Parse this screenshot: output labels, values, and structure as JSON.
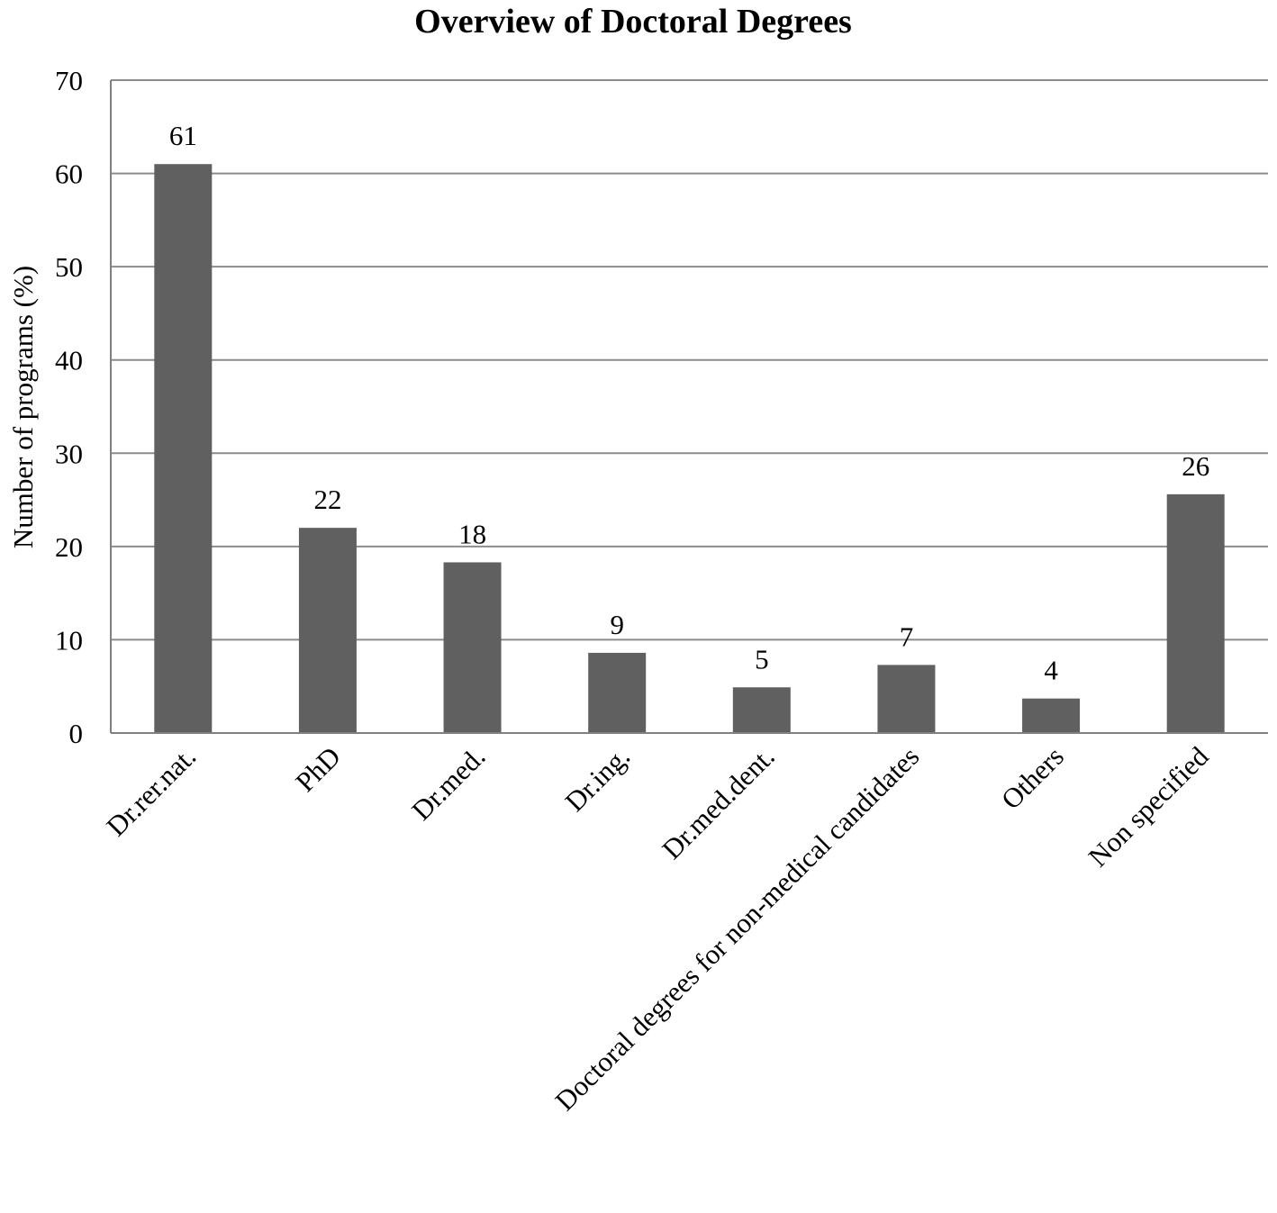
{
  "chart_data": {
    "type": "bar",
    "title": "Overview of Doctoral Degrees",
    "xlabel": "",
    "ylabel": "Number of programs (%)",
    "ylim": [
      0,
      70
    ],
    "yticks": [
      0,
      10,
      20,
      30,
      40,
      50,
      60,
      70
    ],
    "grid": true,
    "categories": [
      "Dr.rer.nat.",
      "PhD",
      "Dr.med.",
      "Dr.ing.",
      "Dr.med.dent.",
      "Doctoral degrees for non-medical candidates",
      "Others",
      "Non specified"
    ],
    "values": [
      61,
      22,
      18.3,
      8.6,
      4.9,
      7.3,
      3.7,
      25.6
    ],
    "data_labels": [
      "61",
      "22",
      "18",
      "9",
      "5",
      "7",
      "4",
      "26"
    ],
    "colors": {
      "bar": "#606060",
      "grid": "#8c8c8c",
      "axis": "#808080"
    }
  }
}
